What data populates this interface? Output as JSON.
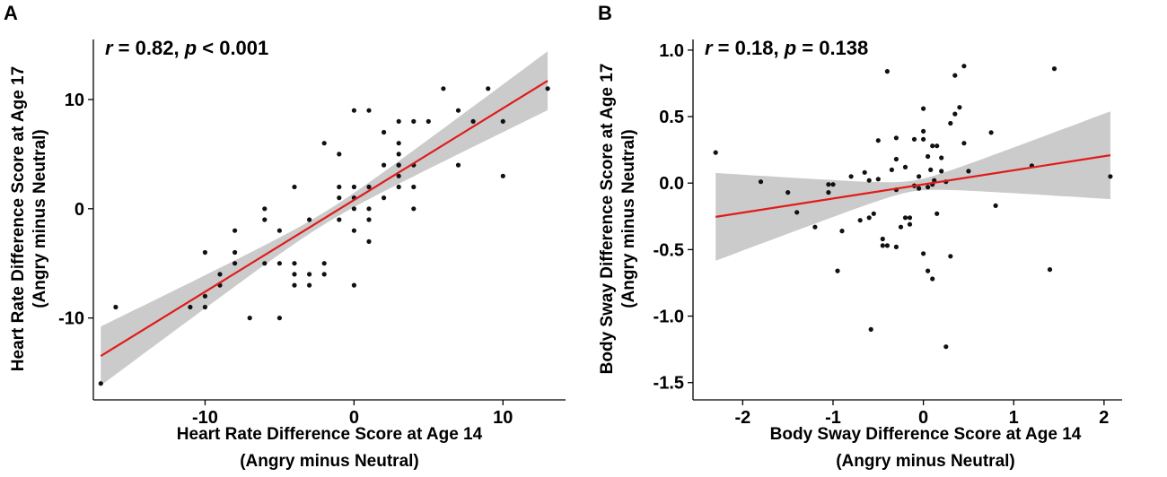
{
  "chart_data": [
    {
      "panel": "A",
      "type": "scatter",
      "stat_r": "r",
      "stat_r_val": " = 0.82, ",
      "stat_p": "p",
      "stat_p_val": " < 0.001",
      "xlabel_line1": "Heart Rate Difference Score at Age 14",
      "xlabel_line2": "(Angry minus Neutral)",
      "ylabel_line1": "Heart Rate Difference Score at Age 17",
      "ylabel_line2": "(Angry minus Neutral)",
      "xlim": [
        -17.5,
        14.2
      ],
      "ylim": [
        -17.5,
        15.5
      ],
      "xticks": [
        -10,
        0,
        10
      ],
      "xtick_labels": [
        "-10",
        "0",
        "10"
      ],
      "yticks": [
        -10,
        0,
        10
      ],
      "ytick_labels": [
        "-10",
        "0",
        "10"
      ],
      "fit": {
        "slope": 0.84,
        "intercept": 0.8,
        "x_range": [
          -17,
          13
        ]
      },
      "band_halfwidth": {
        "at_ends": 2.7,
        "at_center": 0.55
      },
      "x": [
        -17,
        -16,
        -11,
        -10,
        -10,
        -10,
        -9,
        -9,
        -8,
        -8,
        -8,
        -7,
        -6,
        -6,
        -6,
        -5,
        -5,
        -5,
        -4,
        -4,
        -4,
        -4,
        -3,
        -3,
        -3,
        -2,
        -2,
        -2,
        -1,
        -1,
        -1,
        -1,
        0,
        0,
        0,
        0,
        0,
        0,
        1,
        1,
        1,
        1,
        1,
        2,
        2,
        2,
        3,
        3,
        3,
        3,
        3,
        3,
        3,
        4,
        4,
        4,
        4,
        5,
        6,
        7,
        7,
        8,
        9,
        10,
        10,
        13
      ],
      "y": [
        -16,
        -9,
        -9,
        -4,
        -8,
        -9,
        -6,
        -7,
        -2,
        -4,
        -5,
        -10,
        0,
        -1,
        -5,
        -2,
        -5,
        -10,
        2,
        -5,
        -6,
        -7,
        -1,
        -6,
        -7,
        6,
        -5,
        -6,
        2,
        1,
        -1,
        5,
        9,
        2,
        0,
        -2,
        -7,
        1,
        9,
        2,
        0,
        -1,
        -3,
        7,
        4,
        1,
        8,
        6,
        5,
        4,
        3,
        2,
        4,
        8,
        4,
        2,
        0,
        8,
        11,
        9,
        4,
        8,
        11,
        8,
        3,
        11
      ]
    },
    {
      "panel": "B",
      "type": "scatter",
      "stat_r": "r",
      "stat_r_val": " = 0.18, ",
      "stat_p": "p",
      "stat_p_val": " = 0.138",
      "xlabel_line1": "Body Sway Difference Score at Age 14",
      "xlabel_line2": "(Angry minus Neutral)",
      "ylabel_line1": "Body Sway Difference Score at Age 17",
      "ylabel_line2": "(Angry minus Neutral)",
      "xlim": [
        -2.55,
        2.2
      ],
      "ylim": [
        -1.63,
        1.08
      ],
      "xticks": [
        -2,
        -1,
        0,
        1,
        2
      ],
      "xtick_labels": [
        "-2",
        "-1",
        "0",
        "1",
        "2"
      ],
      "yticks": [
        -1.5,
        -1.0,
        -0.5,
        0.0,
        0.5,
        1.0
      ],
      "ytick_labels": [
        "-1.5",
        "-1.0",
        "-0.5",
        "0.0",
        "0.5",
        "1.0"
      ],
      "fit": {
        "slope": 0.106,
        "intercept": -0.01,
        "x_range": [
          -2.3,
          2.07
        ]
      },
      "band_halfwidth": {
        "at_ends": 0.33,
        "at_center": 0.04
      },
      "x": [
        -2.3,
        -1.8,
        -1.5,
        -1.4,
        -1.2,
        -1.05,
        -1.05,
        -0.95,
        -0.9,
        -0.8,
        -0.7,
        -0.65,
        -0.6,
        -0.6,
        -0.55,
        -0.5,
        -0.5,
        -0.45,
        -0.4,
        -0.4,
        -0.35,
        -0.3,
        -0.3,
        -0.3,
        -0.25,
        -0.2,
        -0.2,
        -0.15,
        -0.15,
        -0.1,
        -0.1,
        -0.05,
        -0.05,
        0,
        0,
        0,
        0.05,
        0.05,
        0.05,
        0.08,
        0.1,
        0.1,
        0.12,
        0.15,
        0.15,
        0.2,
        0.2,
        0.25,
        0.3,
        0.3,
        0.35,
        0.35,
        0.4,
        0.45,
        0.45,
        0.5,
        0.75,
        0.8,
        1.2,
        1.4,
        1.45,
        2.07,
        -1.0,
        -0.58,
        -0.3,
        0.1,
        0.25,
        0.0,
        -0.45,
        -0.1
      ],
      "y": [
        0.23,
        0.01,
        -0.07,
        -0.22,
        -0.33,
        -0.01,
        -0.07,
        -0.66,
        -0.36,
        0.05,
        -0.28,
        0.08,
        -0.26,
        0.02,
        -0.23,
        0.32,
        0.03,
        -0.42,
        0.84,
        -0.47,
        0.1,
        0.34,
        0.18,
        -0.48,
        -0.33,
        0.12,
        -0.26,
        -0.26,
        -0.31,
        0.33,
        -0.02,
        0.05,
        -0.04,
        0.39,
        0.56,
        -0.53,
        0.2,
        -0.66,
        -0.03,
        0.1,
        0.28,
        -0.01,
        0.02,
        -0.23,
        0.28,
        0.19,
        0.09,
        0.01,
        0.45,
        -0.55,
        0.52,
        0.81,
        0.57,
        0.88,
        0.3,
        0.09,
        0.38,
        -0.17,
        0.13,
        -0.65,
        0.86,
        0.05,
        -0.01,
        -1.1,
        -0.05,
        -0.72,
        -1.23,
        0.33,
        -0.47,
        -0.02
      ]
    }
  ]
}
